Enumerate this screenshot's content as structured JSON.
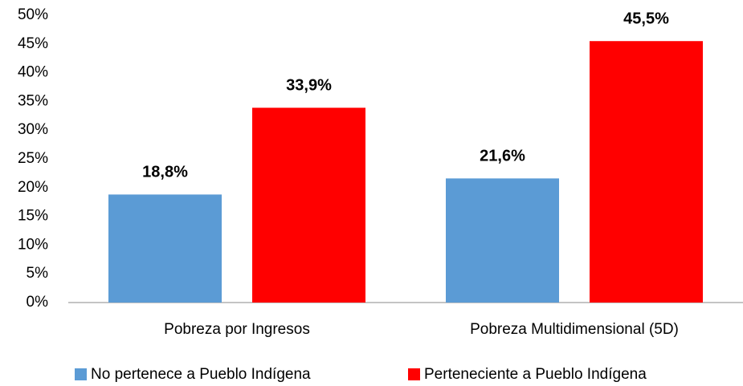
{
  "chart_data": {
    "type": "bar",
    "categories": [
      "Pobreza por Ingresos",
      "Pobreza Multidimensional (5D)"
    ],
    "series": [
      {
        "name": "No pertenece a Pueblo Indígena",
        "color": "#5b9bd5",
        "values": [
          18.8,
          21.6
        ],
        "value_labels": [
          "18,8%",
          "21,6%"
        ]
      },
      {
        "name": "Perteneciente a Pueblo Indígena",
        "color": "#ff0000",
        "values": [
          33.9,
          45.5
        ],
        "value_labels": [
          "33,9%",
          "45,5%"
        ]
      }
    ],
    "ylim": [
      0,
      50
    ],
    "yticks": [
      {
        "value": 0,
        "label": "0%"
      },
      {
        "value": 5,
        "label": "5%"
      },
      {
        "value": 10,
        "label": "10%"
      },
      {
        "value": 15,
        "label": "15%"
      },
      {
        "value": 20,
        "label": "20%"
      },
      {
        "value": 25,
        "label": "25%"
      },
      {
        "value": 30,
        "label": "30%"
      },
      {
        "value": 35,
        "label": "35%"
      },
      {
        "value": 40,
        "label": "40%"
      },
      {
        "value": 45,
        "label": "45%"
      },
      {
        "value": 50,
        "label": "50%"
      }
    ],
    "grid": false,
    "legend": "bottom"
  }
}
